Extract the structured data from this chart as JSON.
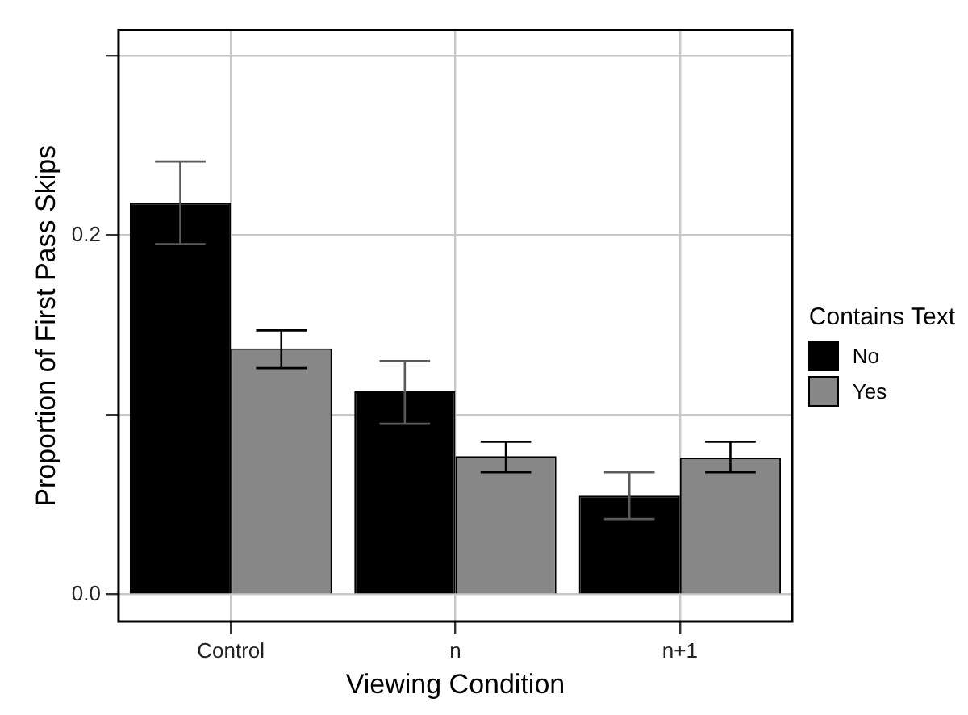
{
  "chart_data": {
    "type": "bar",
    "xlabel": "Viewing Condition",
    "ylabel": "Proportion of First Pass Skips",
    "legend_title": "Contains Text",
    "categories": [
      "Control",
      "n",
      "n+1"
    ],
    "series": [
      {
        "name": "No",
        "color": "#000000",
        "values": [
          0.218,
          0.113,
          0.055
        ],
        "errors": [
          [
            0.195,
            0.241
          ],
          [
            0.095,
            0.13
          ],
          [
            0.042,
            0.068
          ]
        ]
      },
      {
        "name": "Yes",
        "color": "#878787",
        "values": [
          0.137,
          0.077,
          0.076
        ],
        "errors": [
          [
            0.126,
            0.147
          ],
          [
            0.068,
            0.085
          ],
          [
            0.068,
            0.085
          ]
        ]
      }
    ],
    "ylim": [
      -0.015,
      0.314
    ],
    "yticks": [
      {
        "value": 0,
        "label": "0.0"
      },
      {
        "value": 0.1,
        "label": null
      },
      0.2,
      {
        "value": 0.3,
        "label": null
      }
    ],
    "grid": true,
    "legend": "right"
  }
}
